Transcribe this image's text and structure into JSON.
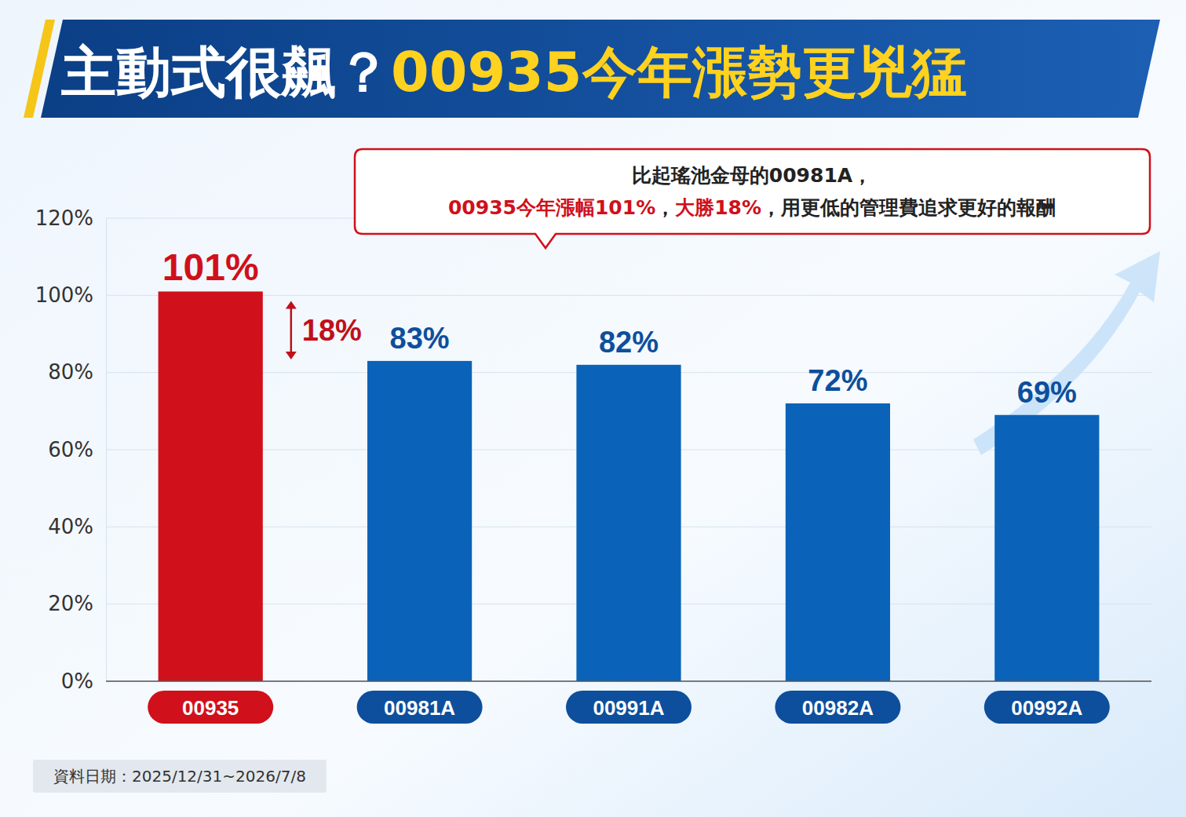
{
  "chart_data": {
    "type": "bar",
    "title": "主動式很飆？00935今年漲勢更兇猛",
    "categories": [
      "00935",
      "00981A",
      "00991A",
      "00982A",
      "00992A"
    ],
    "values": [
      101,
      83,
      82,
      72,
      69
    ],
    "value_labels": [
      "101%",
      "83%",
      "82%",
      "72%",
      "69%"
    ],
    "colors": [
      "#d0101a",
      "#0a63b8",
      "#0a63b8",
      "#0a63b8",
      "#0a63b8"
    ],
    "data_labels": true,
    "grid": true,
    "ylim": [
      0,
      120
    ],
    "yticks": [
      {
        "value": 0,
        "label": "0%"
      },
      {
        "value": 20,
        "label": "20%"
      },
      {
        "value": 40,
        "label": "40%"
      },
      {
        "value": 60,
        "label": "60%"
      },
      {
        "value": 80,
        "label": "80%"
      },
      {
        "value": 100,
        "label": "100%"
      },
      {
        "value": 120,
        "label": "120%"
      }
    ],
    "annotations": [
      {
        "text": "比起瑤池金母的00981A，"
      },
      {
        "parts": [
          {
            "text": "00935今年漲幅101%",
            "color": "#d0101a"
          },
          {
            "text": "，"
          },
          {
            "text": "大勝18%",
            "color": "#d0101a"
          },
          {
            "text": "，用更低的管理費追求更好的報酬"
          }
        ]
      },
      {
        "text": "18%",
        "value": 18
      }
    ],
    "note": "資料日期：2025/12/31~2026/7/8"
  }
}
